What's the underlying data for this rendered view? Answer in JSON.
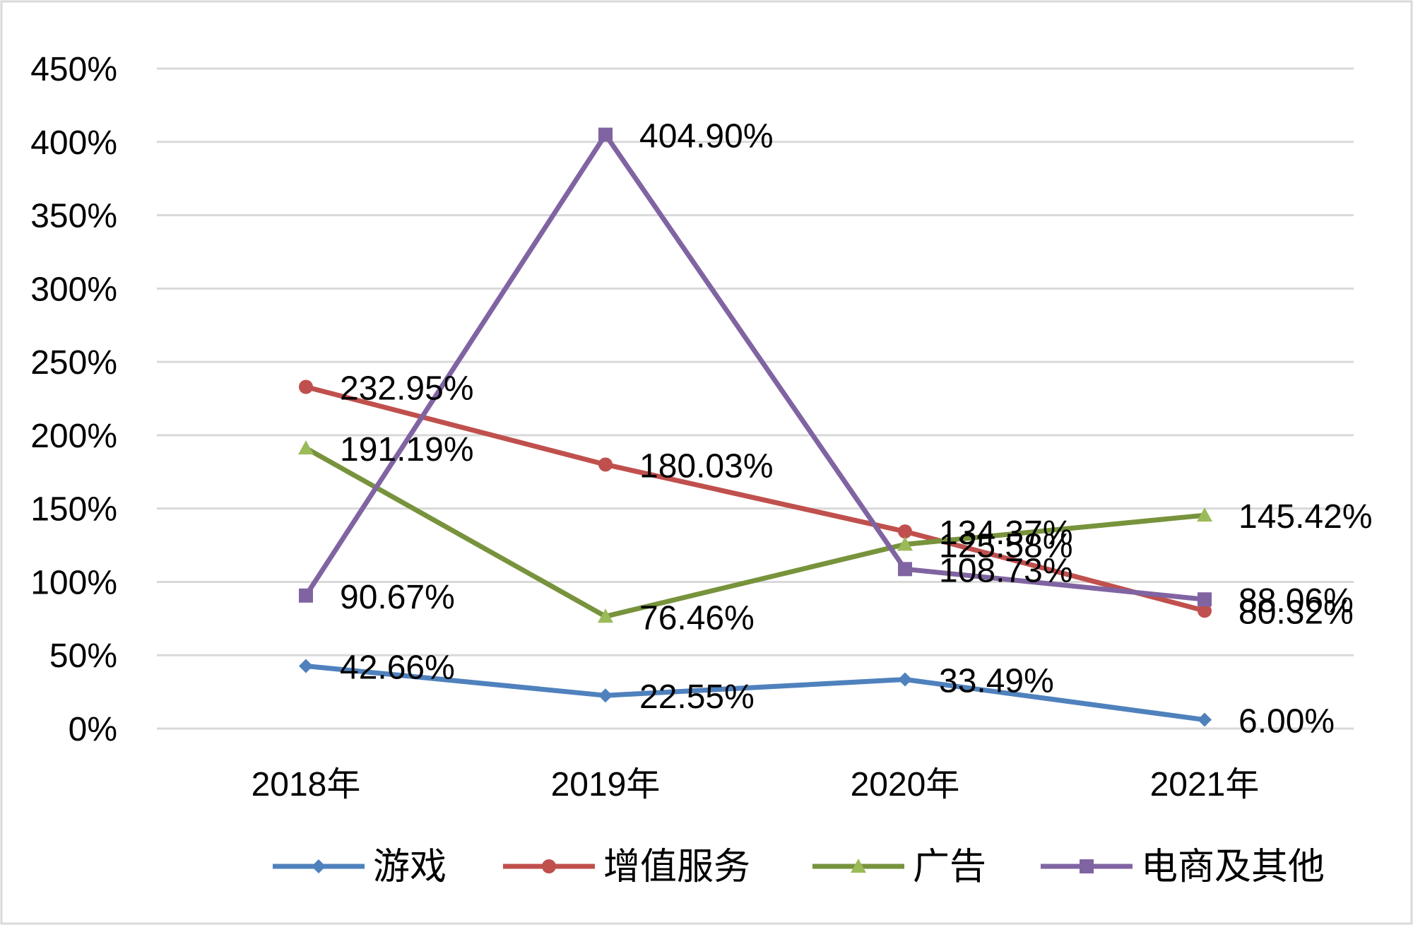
{
  "chart_data": {
    "type": "line",
    "categories": [
      "2018年",
      "2019年",
      "2020年",
      "2021年"
    ],
    "ylim": [
      0,
      450
    ],
    "yticks": [
      0,
      50,
      100,
      150,
      200,
      250,
      300,
      350,
      400,
      450
    ],
    "ytick_labels": [
      "0%",
      "50%",
      "100%",
      "150%",
      "200%",
      "250%",
      "300%",
      "350%",
      "400%",
      "450%"
    ],
    "grid": true,
    "legend_position": "bottom",
    "series": [
      {
        "name": "游戏",
        "color": "#4f81bd",
        "marker": "diamond",
        "values": [
          42.66,
          22.55,
          33.49,
          6.0
        ],
        "labels": [
          "42.66%",
          "22.55%",
          "33.49%",
          "6.00%"
        ]
      },
      {
        "name": "增值服务",
        "color": "#c0504d",
        "marker": "circle",
        "values": [
          232.95,
          180.03,
          134.37,
          80.32
        ],
        "labels": [
          "232.95%",
          "180.03%",
          "134.37%",
          "80.32%"
        ]
      },
      {
        "name": "广告",
        "color": "#77933c",
        "marker_color": "#9bbb59",
        "marker": "triangle",
        "values": [
          191.19,
          76.46,
          125.58,
          145.42
        ],
        "labels": [
          "191.19%",
          "76.46%",
          "125.58%",
          "145.42%"
        ]
      },
      {
        "name": "电商及其他",
        "color": "#8064a2",
        "marker": "square",
        "values": [
          90.67,
          404.9,
          108.73,
          88.06
        ],
        "labels": [
          "90.67%",
          "404.90%",
          "108.73%",
          "88.06%"
        ]
      }
    ]
  }
}
